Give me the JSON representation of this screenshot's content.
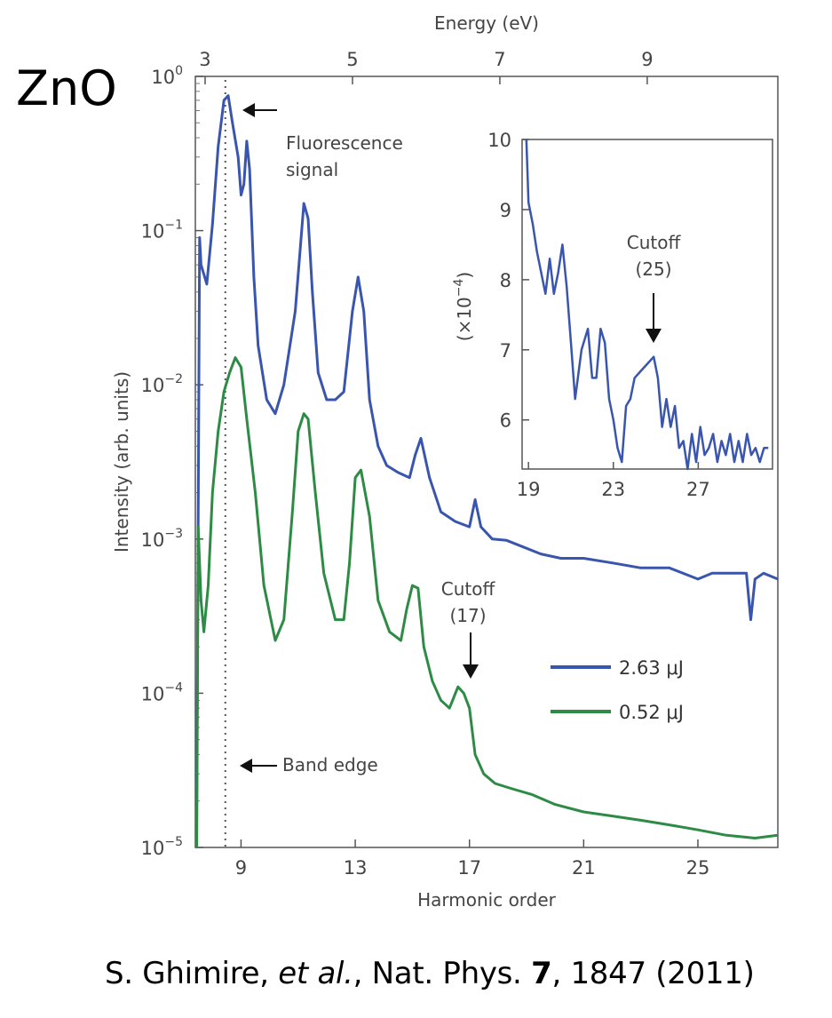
{
  "material_label": "ZnO",
  "citation": {
    "authors": "S. Ghimire, ",
    "etal": "et al.",
    "journal": ", Nat. Phys. ",
    "volume": "7",
    "rest": ", 1847 (2011)"
  },
  "chart_data": [
    {
      "type": "line",
      "title": "",
      "xlabel": "Harmonic order",
      "ylabel": "Intensity (arb. units)",
      "top_xlabel": "Energy (eV)",
      "yscale": "log",
      "xlim": [
        7.4,
        27.8
      ],
      "ylim": [
        1e-05,
        1
      ],
      "xticks": [
        9,
        13,
        17,
        21,
        25
      ],
      "xtick_labels": [
        "9",
        "13",
        "17",
        "21",
        "25"
      ],
      "yticks": [
        1,
        0.1,
        0.01,
        0.001,
        0.0001,
        1e-05
      ],
      "ytick_bases": [
        "10",
        "10",
        "10",
        "10",
        "10",
        "10"
      ],
      "ytick_exps": [
        "0",
        "−1",
        "−2",
        "−3",
        "−4",
        "−5"
      ],
      "top_ticks_ev": [
        3,
        5,
        7,
        9
      ],
      "top_tick_labels": [
        "3",
        "5",
        "7",
        "9"
      ],
      "band_edge_order": 8.45,
      "series": [
        {
          "name": "2.63 μJ",
          "color": "#3a55ad",
          "x": [
            7.45,
            7.55,
            7.6,
            7.8,
            8.0,
            8.2,
            8.4,
            8.55,
            8.7,
            8.9,
            9.0,
            9.1,
            9.2,
            9.3,
            9.45,
            9.6,
            9.9,
            10.2,
            10.5,
            10.9,
            11.2,
            11.35,
            11.5,
            11.7,
            12.0,
            12.3,
            12.6,
            12.9,
            13.1,
            13.3,
            13.5,
            13.8,
            14.1,
            14.5,
            14.9,
            15.1,
            15.3,
            15.6,
            16.0,
            16.5,
            17.0,
            17.2,
            17.4,
            17.8,
            18.3,
            18.8,
            19.5,
            20.2,
            21.0,
            22.0,
            23.0,
            24.0,
            25.0,
            25.5,
            26.0,
            26.5,
            26.7,
            26.85,
            27.0,
            27.3,
            27.8
          ],
          "values": [
            2e-05,
            0.09,
            0.06,
            0.045,
            0.11,
            0.35,
            0.7,
            0.75,
            0.5,
            0.3,
            0.17,
            0.2,
            0.38,
            0.25,
            0.05,
            0.018,
            0.008,
            0.0065,
            0.01,
            0.03,
            0.15,
            0.12,
            0.04,
            0.012,
            0.008,
            0.008,
            0.009,
            0.03,
            0.05,
            0.03,
            0.008,
            0.004,
            0.003,
            0.0027,
            0.0025,
            0.0035,
            0.0045,
            0.0025,
            0.0015,
            0.0013,
            0.0012,
            0.0018,
            0.0012,
            0.001,
            0.00098,
            0.0009,
            0.0008,
            0.00075,
            0.00075,
            0.0007,
            0.00065,
            0.00065,
            0.00055,
            0.0006,
            0.0006,
            0.0006,
            0.0006,
            0.0003,
            0.00055,
            0.0006,
            0.00055
          ]
        },
        {
          "name": "0.52 μJ",
          "color": "#2e8b45",
          "x": [
            7.45,
            7.5,
            7.6,
            7.7,
            7.85,
            8.0,
            8.2,
            8.4,
            8.6,
            8.8,
            9.0,
            9.2,
            9.5,
            9.8,
            10.2,
            10.5,
            10.8,
            11.0,
            11.2,
            11.35,
            11.6,
            11.9,
            12.3,
            12.6,
            12.8,
            13.0,
            13.2,
            13.5,
            13.8,
            14.2,
            14.6,
            14.8,
            15.0,
            15.2,
            15.4,
            15.7,
            16.0,
            16.3,
            16.6,
            16.8,
            17.0,
            17.2,
            17.5,
            17.9,
            18.5,
            19.2,
            20.0,
            21.0,
            22.0,
            23.0,
            24.0,
            25.0,
            26.0,
            27.0,
            27.8
          ],
          "values": [
            1e-05,
            0.0012,
            0.0004,
            0.00025,
            0.0005,
            0.002,
            0.005,
            0.009,
            0.012,
            0.015,
            0.013,
            0.006,
            0.002,
            0.0005,
            0.00022,
            0.0003,
            0.0015,
            0.005,
            0.0065,
            0.006,
            0.002,
            0.0006,
            0.0003,
            0.0003,
            0.0007,
            0.0025,
            0.0028,
            0.0014,
            0.0004,
            0.00025,
            0.00022,
            0.00035,
            0.0005,
            0.00048,
            0.0002,
            0.00012,
            9e-05,
            8e-05,
            0.00011,
            0.0001,
            8e-05,
            4e-05,
            3e-05,
            2.6e-05,
            2.4e-05,
            2.2e-05,
            1.9e-05,
            1.7e-05,
            1.6e-05,
            1.5e-05,
            1.4e-05,
            1.3e-05,
            1.2e-05,
            1.15e-05,
            1.2e-05
          ]
        }
      ],
      "legend": [
        {
          "label": "2.63 μJ",
          "color": "#3a55ad"
        },
        {
          "label": "0.52 μJ",
          "color": "#2e8b45"
        }
      ],
      "legend_position": "lower-right",
      "annotations": {
        "fluorescence_line1": "Fluorescence",
        "fluorescence_line2": "signal",
        "cutoff_main_line1": "Cutoff",
        "cutoff_main_line2": "(17)",
        "band_edge": "Band edge"
      }
    },
    {
      "type": "line",
      "title": "inset",
      "ylabel_prefix": "(×10",
      "ylabel_exp": "−4",
      "ylabel_suffix": ")",
      "xlim": [
        18.7,
        30.5
      ],
      "ylim": [
        5.3,
        10
      ],
      "xticks": [
        19,
        23,
        27
      ],
      "xtick_labels": [
        "19",
        "23",
        "27"
      ],
      "yticks": [
        6,
        7,
        8,
        9,
        10
      ],
      "ytick_labels": [
        "6",
        "7",
        "8",
        "9",
        "10"
      ],
      "cutoff_line1": "Cutoff",
      "cutoff_line2": "(25)",
      "series": [
        {
          "name": "2.63 μJ",
          "color": "#3a55ad",
          "x": [
            18.9,
            19.0,
            19.2,
            19.4,
            19.6,
            19.8,
            20.0,
            20.2,
            20.4,
            20.6,
            20.8,
            21.0,
            21.2,
            21.5,
            21.8,
            22.0,
            22.2,
            22.4,
            22.6,
            22.8,
            23.0,
            23.2,
            23.4,
            23.6,
            23.8,
            24.0,
            24.3,
            24.6,
            24.9,
            25.1,
            25.3,
            25.5,
            25.7,
            25.9,
            26.1,
            26.3,
            26.5,
            26.7,
            26.9,
            27.1,
            27.3,
            27.5,
            27.7,
            27.9,
            28.1,
            28.3,
            28.5,
            28.7,
            28.9,
            29.1,
            29.3,
            29.5,
            29.7,
            29.9,
            30.1,
            30.3
          ],
          "values": [
            10,
            9.1,
            8.8,
            8.4,
            8.1,
            7.8,
            8.3,
            7.8,
            8.1,
            8.5,
            7.9,
            7.1,
            6.3,
            7.0,
            7.3,
            6.6,
            6.6,
            7.3,
            7.1,
            6.3,
            6.0,
            5.6,
            5.4,
            6.2,
            6.3,
            6.6,
            6.7,
            6.8,
            6.9,
            6.6,
            5.9,
            6.3,
            5.9,
            6.2,
            5.6,
            5.7,
            5.3,
            5.8,
            5.4,
            5.9,
            5.5,
            5.6,
            5.8,
            5.4,
            5.7,
            5.5,
            5.8,
            5.4,
            5.7,
            5.4,
            5.8,
            5.5,
            5.6,
            5.4,
            5.6,
            5.6
          ]
        }
      ]
    }
  ]
}
